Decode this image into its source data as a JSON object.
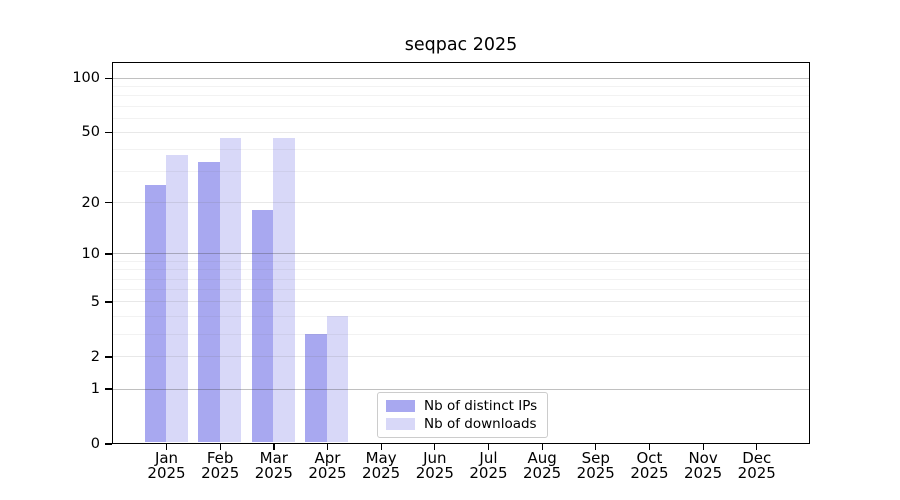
{
  "chart_data": {
    "type": "bar",
    "title": "seqpac 2025",
    "categories": [
      "Jan 2025",
      "Feb 2025",
      "Mar 2025",
      "Apr 2025",
      "May 2025",
      "Jun 2025",
      "Jul 2025",
      "Aug 2025",
      "Sep 2025",
      "Oct 2025",
      "Nov 2025",
      "Dec 2025"
    ],
    "series": [
      {
        "name": "Nb of distinct IPs",
        "color": "#a8a8f0",
        "values": [
          25,
          34,
          18,
          3,
          0,
          0,
          0,
          0,
          0,
          0,
          0,
          0
        ]
      },
      {
        "name": "Nb of downloads",
        "color": "#d8d8f8",
        "values": [
          37,
          46,
          46,
          4,
          0,
          0,
          0,
          0,
          0,
          0,
          0,
          0
        ]
      }
    ],
    "xlabel": "",
    "ylabel": "",
    "y_scale": "log1p (position proportional to log10(1+value), 0 at baseline)",
    "ylim": [
      0,
      125
    ],
    "y_ticks": [
      0,
      1,
      2,
      5,
      10,
      20,
      50,
      100
    ],
    "major_gridlines": [
      1,
      10,
      100
    ],
    "tick_gridlines": [
      2,
      5,
      20,
      50
    ],
    "minor_gridlines": [
      3,
      4,
      6,
      7,
      8,
      9,
      30,
      40,
      60,
      70,
      80,
      90
    ],
    "grid": true,
    "legend_position": "inside bottom-center"
  }
}
